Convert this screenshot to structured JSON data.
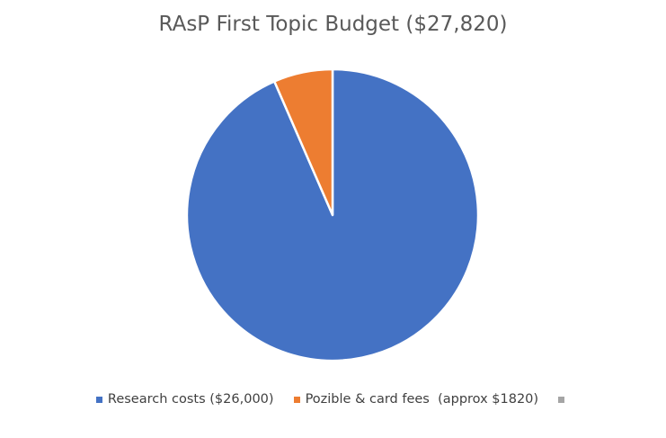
{
  "chart_data": {
    "type": "pie",
    "title": "RAsP First Topic Budget ($27,820)",
    "categories": [
      "Research costs ($26,000)",
      "Pozible & card fees  (approx $1820)",
      ""
    ],
    "values": [
      26000,
      1820,
      0
    ],
    "colors": [
      "#4472c4",
      "#ed7d31",
      "#a5a5a5"
    ],
    "start_angle_deg": 0,
    "direction": "clockwise",
    "slice_border_color": "#ffffff",
    "legend_position": "bottom"
  }
}
